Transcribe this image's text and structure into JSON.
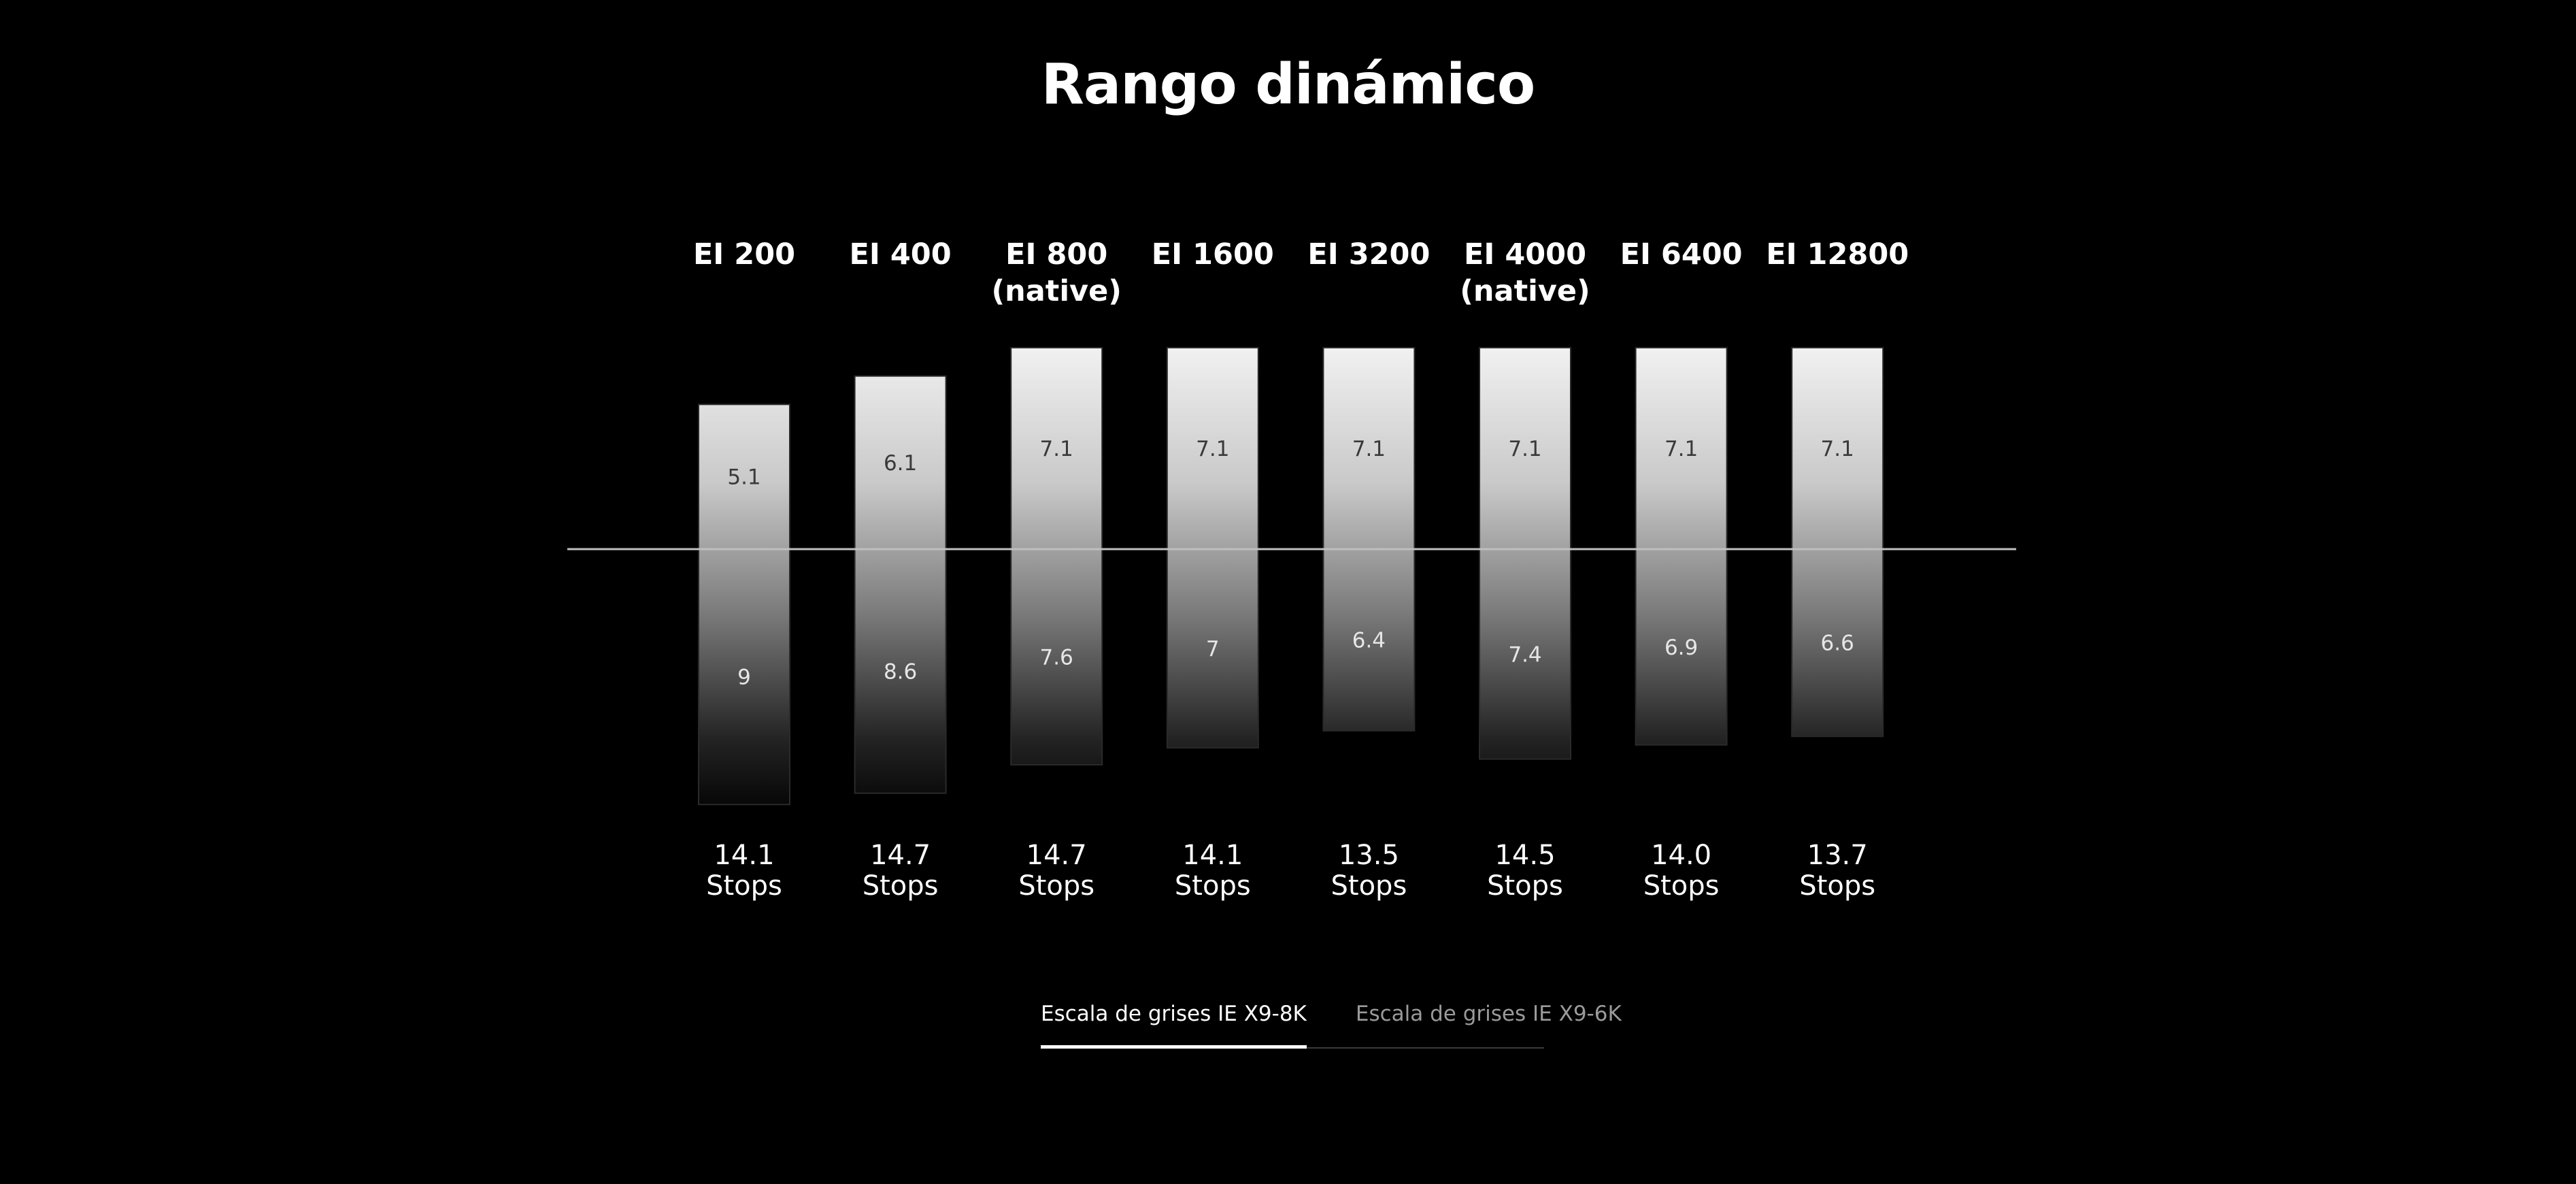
{
  "title": "Rango dinámico",
  "tabs": [
    {
      "label": "Escala de grises IE X9-8K",
      "active": true
    },
    {
      "label": "Escala de grises IE X9-6K",
      "active": false
    }
  ],
  "colors": {
    "background": "#000000",
    "bar_top": "#f2f2f2",
    "bar_bottom": "#050505",
    "baseline": "#bfbfbf",
    "text": "#ffffff"
  },
  "chart_data": {
    "type": "bar",
    "title": "Rango dinámico",
    "xlabel": "",
    "ylabel": "",
    "grid": false,
    "baseline": 0,
    "ylim": [
      -10,
      10
    ],
    "categories": [
      [
        "EI 200"
      ],
      [
        "EI 400"
      ],
      [
        "EI 800",
        "(native)"
      ],
      [
        "EI 1600"
      ],
      [
        "EI 3200"
      ],
      [
        "EI 4000",
        "(native)"
      ],
      [
        "EI 6400"
      ],
      [
        "EI 12800"
      ]
    ],
    "series": [
      {
        "values": [
          5.1,
          6.1,
          7.1,
          7.1,
          7.1,
          7.1,
          7.1,
          7.1
        ],
        "labels": [
          "5.1",
          "6.1",
          "7.1",
          "7.1",
          "7.1",
          "7.1",
          "7.1",
          "7.1"
        ]
      },
      {
        "values": [
          9,
          8.6,
          7.6,
          7,
          6.4,
          7.4,
          6.9,
          6.6
        ],
        "labels": [
          "9",
          "8.6",
          "7.6",
          "7",
          "6.4",
          "7.4",
          "6.9",
          "6.6"
        ]
      }
    ],
    "totals": [
      [
        "14.1",
        "Stops"
      ],
      [
        "14.7",
        "Stops"
      ],
      [
        "14.7",
        "Stops"
      ],
      [
        "14.1",
        "Stops"
      ],
      [
        "13.5",
        "Stops"
      ],
      [
        "14.5",
        "Stops"
      ],
      [
        "14.0",
        "Stops"
      ],
      [
        "13.7",
        "Stops"
      ]
    ]
  }
}
